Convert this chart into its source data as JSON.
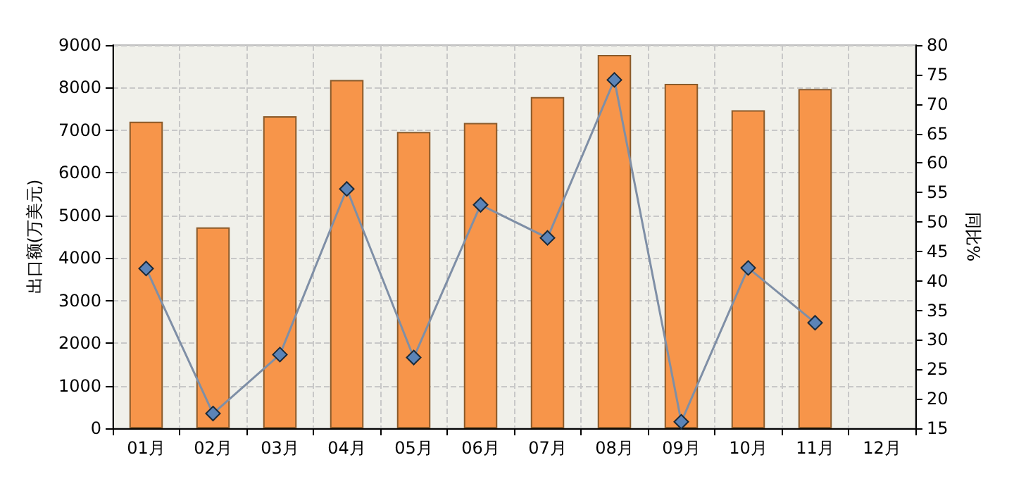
{
  "chart_data": {
    "type": "bar",
    "ylabel": "出口额(万美元)",
    "y2label": "同比%",
    "categories": [
      "01月",
      "02月",
      "03月",
      "04月",
      "05月",
      "06月",
      "07月",
      "08月",
      "09月",
      "10月",
      "11月",
      "12月"
    ],
    "series": [
      {
        "color": "#f7954a",
        "values": [
          7200,
          4720,
          7330,
          8180,
          6960,
          7170,
          7780,
          8770,
          8090,
          7470,
          7970,
          null
        ]
      },
      {
        "type": "line",
        "axis": "y2",
        "color": "#7f8fa6",
        "marker": "diamond",
        "values": [
          42.1,
          17.5,
          27.5,
          55.6,
          27.0,
          52.9,
          47.3,
          74.1,
          16.1,
          42.2,
          32.9,
          null
        ]
      }
    ],
    "ylim": [
      0,
      9000
    ],
    "yticks": [
      0,
      1000,
      2000,
      3000,
      4000,
      5000,
      6000,
      7000,
      8000,
      9000
    ],
    "y2lim": [
      15,
      80
    ],
    "y2ticks": [
      15,
      20,
      25,
      30,
      35,
      40,
      45,
      50,
      55,
      60,
      65,
      70,
      75,
      80
    ],
    "grid": true
  }
}
